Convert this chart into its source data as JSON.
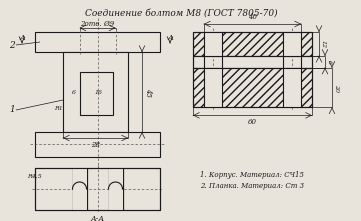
{
  "title": "Соединение болтом М8 (ГОСТ 7805-70)",
  "title_fontsize": 6.5,
  "bg_color": "#e8e4dc",
  "line_color": "#1a1a1a",
  "materials": [
    "1. Корпус. Материал: СЧ15",
    "2. Планка. Материал: Ст 3"
  ],
  "annotations": {
    "label1": "1",
    "label2": "2",
    "dim_2otv": "2отв. Ø9",
    "dim_6": "6",
    "dim_16": "16",
    "dim_28": "28",
    "dim_45": "45",
    "dim_R1": "R1",
    "dim_R45": "R4,5",
    "dim_AA": "А-А",
    "dim_A": "А",
    "dim_40": "40",
    "dim_60": "60",
    "dim_12": "12",
    "dim_6b": "6",
    "dim_20": "20"
  }
}
